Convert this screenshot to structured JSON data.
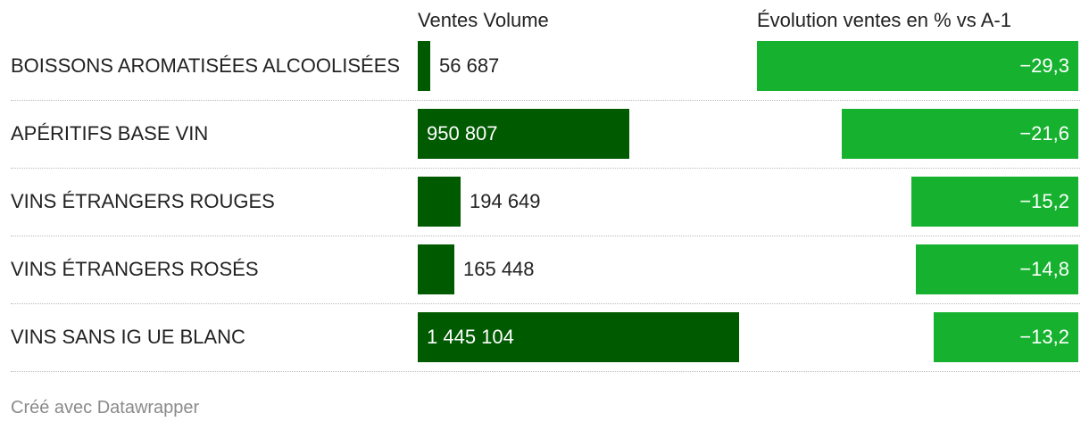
{
  "chart_data": {
    "type": "table",
    "columns": [
      "Ventes Volume",
      "Évolution ventes en % vs A-1"
    ],
    "rows": [
      {
        "category": "BOISSONS AROMATISÉES ALCOOLISÉES",
        "volume": 56687,
        "volume_label": "56 687",
        "change": -29.3,
        "change_label": "−29,3"
      },
      {
        "category": "APÉRITIFS BASE VIN",
        "volume": 950807,
        "volume_label": "950 807",
        "change": -21.6,
        "change_label": "−21,6"
      },
      {
        "category": "VINS ÉTRANGERS ROUGES",
        "volume": 194649,
        "volume_label": "194 649",
        "change": -15.2,
        "change_label": "−15,2"
      },
      {
        "category": "VINS ÉTRANGERS ROSÉS",
        "volume": 165448,
        "volume_label": "165 448",
        "change": -14.8,
        "change_label": "−14,8"
      },
      {
        "category": "VINS SANS IG UE BLANC",
        "volume": 1445104,
        "volume_label": "1 445 104",
        "change": -13.2,
        "change_label": "−13,2"
      }
    ],
    "volume_range": [
      0,
      1445104
    ],
    "change_range": [
      -29.3,
      0
    ]
  },
  "colors": {
    "volume_bar": "#005a00",
    "change_bar": "#16b22f"
  },
  "footer": "Créé avec Datawrapper"
}
